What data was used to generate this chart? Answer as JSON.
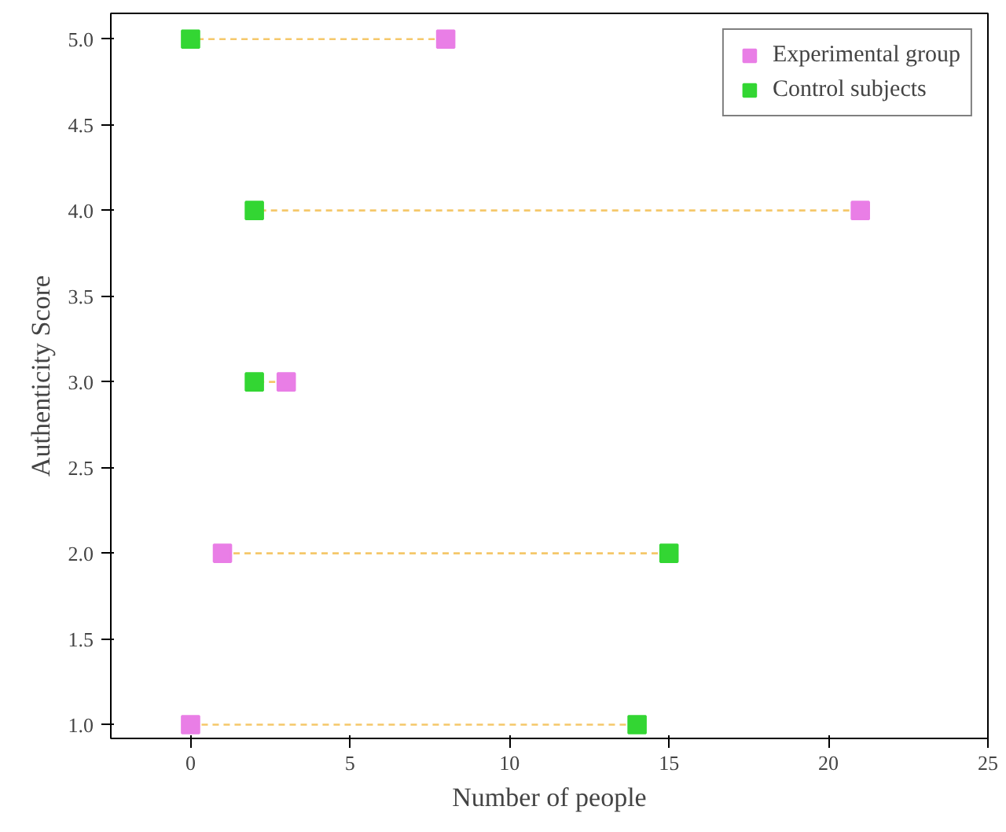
{
  "chart_data": {
    "type": "scatter",
    "xlabel": "Number of people",
    "ylabel": "Authenticity Score",
    "xlim": [
      -2.5,
      25
    ],
    "xticks": [
      0,
      5,
      10,
      15,
      20,
      25
    ],
    "ylim": [
      0.92,
      5.15
    ],
    "yticks": [
      {
        "value": 1,
        "label": "1.0"
      },
      {
        "value": 1.5,
        "label": "1.5"
      },
      {
        "value": 2,
        "label": "2.0"
      },
      {
        "value": 2.5,
        "label": "2.5"
      },
      {
        "value": 3,
        "label": "3.0"
      },
      {
        "value": 3.5,
        "label": "3.5"
      },
      {
        "value": 4,
        "label": "4.0"
      },
      {
        "value": 4.5,
        "label": "4.5"
      },
      {
        "value": 5,
        "label": "5.0"
      }
    ],
    "grid": false,
    "legend": "top right",
    "marker": "square",
    "series": [
      {
        "type": "line",
        "color": "#f5c86a",
        "line_style": "dashed",
        "marker": "none",
        "x": [
          8,
          0
        ],
        "values": [
          5,
          5
        ]
      },
      {
        "type": "line",
        "color": "#f5c86a",
        "line_style": "dashed",
        "marker": "none",
        "x": [
          21,
          2
        ],
        "values": [
          4,
          4
        ]
      },
      {
        "type": "line",
        "color": "#f5c86a",
        "line_style": "dashed",
        "marker": "none",
        "x": [
          3,
          2
        ],
        "values": [
          3,
          3
        ]
      },
      {
        "type": "line",
        "color": "#f5c86a",
        "line_style": "dashed",
        "marker": "none",
        "x": [
          1,
          15
        ],
        "values": [
          2,
          2
        ]
      },
      {
        "type": "line",
        "color": "#f5c86a",
        "line_style": "dashed",
        "marker": "none",
        "x": [
          0,
          14
        ],
        "values": [
          1,
          1
        ]
      },
      {
        "name": "Experimental group",
        "color": "#e97ee6",
        "x": [
          8,
          21,
          3,
          1,
          0
        ],
        "values": [
          5,
          4,
          3,
          2,
          1
        ]
      },
      {
        "name": "Control subjects",
        "color": "#33d633",
        "x": [
          0,
          2,
          2,
          15,
          14
        ],
        "values": [
          5,
          4,
          3,
          2,
          1
        ]
      }
    ]
  }
}
